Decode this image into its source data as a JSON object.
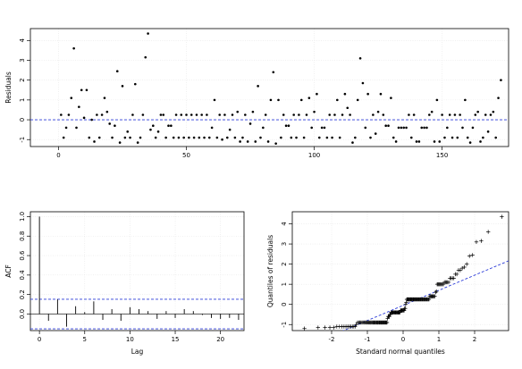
{
  "chart_data": [
    {
      "type": "scatter",
      "xlabel": "",
      "ylabel": "Residuals",
      "xlim": [
        -11,
        176
      ],
      "ylim": [
        -1.35,
        4.6
      ],
      "xticks": [
        0,
        50,
        100,
        150
      ],
      "yticks": [
        -1,
        0,
        1,
        2,
        3,
        4
      ],
      "hline": 0,
      "grid": true,
      "y": [
        0.25,
        -0.9,
        -0.4,
        0.25,
        1.1,
        3.6,
        -0.4,
        0.65,
        1.5,
        0.1,
        1.5,
        -0.9,
        0.0,
        -1.1,
        0.25,
        -0.9,
        0.25,
        1.1,
        0.4,
        -0.2,
        -0.9,
        -0.3,
        2.45,
        -1.15,
        1.7,
        -0.9,
        -0.6,
        -0.9,
        0.25,
        1.8,
        -1.15,
        -0.9,
        0.25,
        3.15,
        4.35,
        -0.5,
        -0.3,
        -0.9,
        -0.6,
        0.25,
        0.25,
        -0.9,
        -0.3,
        -0.3,
        -0.9,
        0.25,
        -0.9,
        0.25,
        -0.9,
        0.25,
        -0.9,
        0.25,
        -0.9,
        0.25,
        -0.9,
        0.25,
        -0.9,
        0.25,
        -0.9,
        -0.4,
        1.0,
        -0.9,
        0.25,
        -1.0,
        0.25,
        -0.9,
        -0.5,
        0.25,
        -0.9,
        0.4,
        -1.1,
        -0.9,
        0.25,
        -1.1,
        -0.2,
        0.4,
        -1.1,
        1.7,
        -0.9,
        -0.4,
        0.25,
        -1.1,
        1.0,
        2.4,
        -1.2,
        1.0,
        -0.9,
        0.25,
        -0.3,
        -0.3,
        -0.9,
        0.25,
        -0.9,
        0.25,
        1.0,
        -0.9,
        0.25,
        1.1,
        -0.4,
        0.4,
        1.3,
        -0.9,
        -0.4,
        -0.4,
        -0.9,
        0.25,
        -0.9,
        0.25,
        1.0,
        -0.9,
        0.25,
        1.3,
        0.6,
        0.25,
        -1.15,
        -0.9,
        1.0,
        3.1,
        1.85,
        -0.4,
        1.3,
        -0.9,
        0.25,
        -0.7,
        0.4,
        1.3,
        0.25,
        -0.3,
        -0.3,
        1.1,
        -0.9,
        -1.1,
        -0.4,
        -0.4,
        -0.4,
        -0.4,
        0.25,
        -0.9,
        0.25,
        -1.1,
        -1.1,
        -0.4,
        -0.4,
        -0.4,
        0.25,
        0.4,
        -1.1,
        1.0,
        -1.1,
        0.25,
        -0.9,
        -0.4,
        0.25,
        -0.9,
        0.25,
        -0.9,
        0.25,
        -0.4,
        1.0,
        -0.9,
        -1.15,
        -0.4,
        0.25,
        0.4,
        -1.1,
        -0.9,
        0.25,
        -0.6,
        0.25,
        0.4,
        -0.9,
        1.1,
        2.0
      ]
    },
    {
      "type": "bar",
      "xlabel": "Lag",
      "ylabel": "ACF",
      "xlim": [
        -1,
        22.6
      ],
      "ylim": [
        -0.17,
        1.05
      ],
      "xticks": [
        0,
        5,
        10,
        15,
        20
      ],
      "yticks": [
        0.0,
        0.2,
        0.4,
        0.6,
        0.8,
        1.0
      ],
      "confidence_bounds": [
        0.152,
        -0.152
      ],
      "lags": [
        0,
        1,
        2,
        3,
        4,
        5,
        6,
        7,
        8,
        9,
        10,
        11,
        12,
        13,
        14,
        15,
        16,
        17,
        18,
        19,
        20,
        21,
        22
      ],
      "values": [
        1.0,
        -0.07,
        0.15,
        -0.13,
        0.08,
        0.02,
        0.13,
        -0.06,
        0.05,
        -0.07,
        0.07,
        0.05,
        0.03,
        -0.05,
        0.03,
        -0.04,
        0.05,
        0.03,
        -0.01,
        -0.04,
        -0.05,
        -0.04,
        -0.06
      ]
    },
    {
      "type": "scatter",
      "subtype": "qq",
      "xlabel": "Standard normal quantiles",
      "ylabel": "Quantiles of residuals",
      "xlim": [
        -3.1,
        2.95
      ],
      "ylim": [
        -1.3,
        4.6
      ],
      "xticks": [
        -2,
        -1,
        0,
        1,
        2
      ],
      "yticks": [
        -1,
        0,
        1,
        2,
        3,
        4
      ],
      "reference_line": {
        "intercept": -0.05,
        "slope": 0.75
      }
    }
  ]
}
